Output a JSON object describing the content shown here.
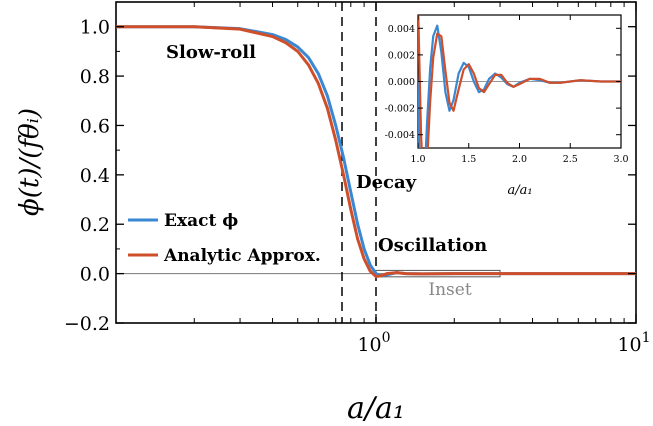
{
  "chart_data": [
    {
      "type": "line",
      "xscale": "log",
      "xlim": [
        0.1,
        10
      ],
      "ylim": [
        -0.2,
        1.1
      ],
      "xlabel": "a/a₁",
      "ylabel": "ϕ(t)/(fθᵢ)",
      "x_ticks": [
        {
          "value": 1,
          "base": "10",
          "exp": "0"
        },
        {
          "value": 10,
          "base": "10",
          "exp": "1"
        }
      ],
      "y_ticks": [
        {
          "value": -0.2,
          "label": "−0.2"
        },
        {
          "value": 0.0,
          "label": "0.0"
        },
        {
          "value": 0.2,
          "label": "0.2"
        },
        {
          "value": 0.4,
          "label": "0.4"
        },
        {
          "value": 0.6,
          "label": "0.6"
        },
        {
          "value": 0.8,
          "label": "0.8"
        },
        {
          "value": 1.0,
          "label": "1.0"
        }
      ],
      "vertical_lines": [
        0.74,
        1.0
      ],
      "inset_box": {
        "x": [
          1.0,
          3.0
        ],
        "y": [
          -0.013,
          0.013
        ],
        "label": "Inset"
      },
      "annotations": [
        "Slow-roll",
        "Decay",
        "Oscillation"
      ],
      "legend": {
        "position": "lower-left"
      },
      "series": [
        {
          "name": "Exact ϕ",
          "color": "#3a87d4",
          "x": [
            0.1,
            0.2,
            0.3,
            0.4,
            0.45,
            0.5,
            0.55,
            0.6,
            0.65,
            0.7,
            0.75,
            0.8,
            0.85,
            0.9,
            0.95,
            1.0,
            1.05,
            1.1,
            1.2,
            1.3,
            1.5,
            2.0,
            3.0,
            10.0
          ],
          "y": [
            1.0,
            1.0,
            0.992,
            0.968,
            0.948,
            0.918,
            0.875,
            0.81,
            0.72,
            0.6,
            0.47,
            0.33,
            0.2,
            0.1,
            0.035,
            0.0,
            -0.01,
            -0.005,
            0.004,
            0.0,
            -0.001,
            0.0,
            0.0,
            0.0
          ]
        },
        {
          "name": "Analytic Approx.",
          "color": "#cf4f2b",
          "x": [
            0.1,
            0.2,
            0.3,
            0.4,
            0.45,
            0.5,
            0.55,
            0.6,
            0.65,
            0.7,
            0.75,
            0.8,
            0.85,
            0.9,
            0.95,
            1.0,
            1.05,
            1.1,
            1.2,
            1.3,
            1.5,
            2.0,
            3.0,
            10.0
          ],
          "y": [
            1.0,
            1.0,
            0.99,
            0.96,
            0.935,
            0.9,
            0.845,
            0.77,
            0.67,
            0.54,
            0.4,
            0.26,
            0.14,
            0.06,
            0.01,
            -0.012,
            -0.008,
            0.0,
            0.004,
            0.0,
            -0.001,
            0.0,
            0.0,
            0.0
          ]
        }
      ]
    },
    {
      "type": "line",
      "xlim": [
        1.0,
        3.0
      ],
      "ylim": [
        -0.005,
        0.005
      ],
      "xlabel": "a/a₁",
      "x_ticks": [
        "1.0",
        "1.5",
        "2.0",
        "2.5",
        "3.0"
      ],
      "y_ticks": [
        "-0.004",
        "-0.002",
        "0.000",
        "0.002",
        "0.004"
      ],
      "series": [
        {
          "name": "Exact ϕ",
          "color": "#3a87d4",
          "x": [
            1.0,
            1.03,
            1.06,
            1.09,
            1.12,
            1.15,
            1.19,
            1.23,
            1.27,
            1.31,
            1.35,
            1.4,
            1.45,
            1.5,
            1.55,
            1.6,
            1.65,
            1.7,
            1.76,
            1.82,
            1.88,
            1.94,
            2.0,
            2.1,
            2.2,
            2.3,
            2.4,
            2.5,
            2.6,
            2.8,
            3.0
          ],
          "y": [
            0.0,
            -0.012,
            -0.008,
            -0.003,
            0.001,
            0.0034,
            0.0042,
            0.0022,
            -0.0008,
            -0.0022,
            -0.0014,
            0.0006,
            0.0014,
            0.0011,
            0.0,
            -0.0008,
            -0.0006,
            0.0002,
            0.0006,
            0.0003,
            -0.0002,
            -0.0004,
            -0.0001,
            0.0002,
            0.0001,
            -0.0001,
            -0.0001,
            0.0,
            0.0001,
            0.0,
            0.0
          ]
        },
        {
          "name": "Analytic Approx.",
          "color": "#cf4f2b",
          "x": [
            1.0,
            1.03,
            1.06,
            1.09,
            1.12,
            1.15,
            1.19,
            1.23,
            1.27,
            1.31,
            1.35,
            1.4,
            1.45,
            1.5,
            1.55,
            1.6,
            1.65,
            1.7,
            1.76,
            1.82,
            1.88,
            1.94,
            2.0,
            2.1,
            2.2,
            2.3,
            2.4,
            2.5,
            2.6,
            2.8,
            3.0
          ],
          "y": [
            0.006,
            -0.004,
            -0.009,
            -0.006,
            -0.0015,
            0.0018,
            0.0036,
            0.0034,
            0.0008,
            -0.0016,
            -0.0022,
            -0.0006,
            0.0009,
            0.0013,
            0.0006,
            -0.0005,
            -0.0008,
            -0.0002,
            0.0005,
            0.0005,
            -0.0001,
            -0.0004,
            -0.0002,
            0.0002,
            0.0002,
            -0.0001,
            -0.0001,
            0.0,
            0.0001,
            0.0,
            0.0
          ]
        }
      ]
    }
  ],
  "inset_label_text": "Inset"
}
